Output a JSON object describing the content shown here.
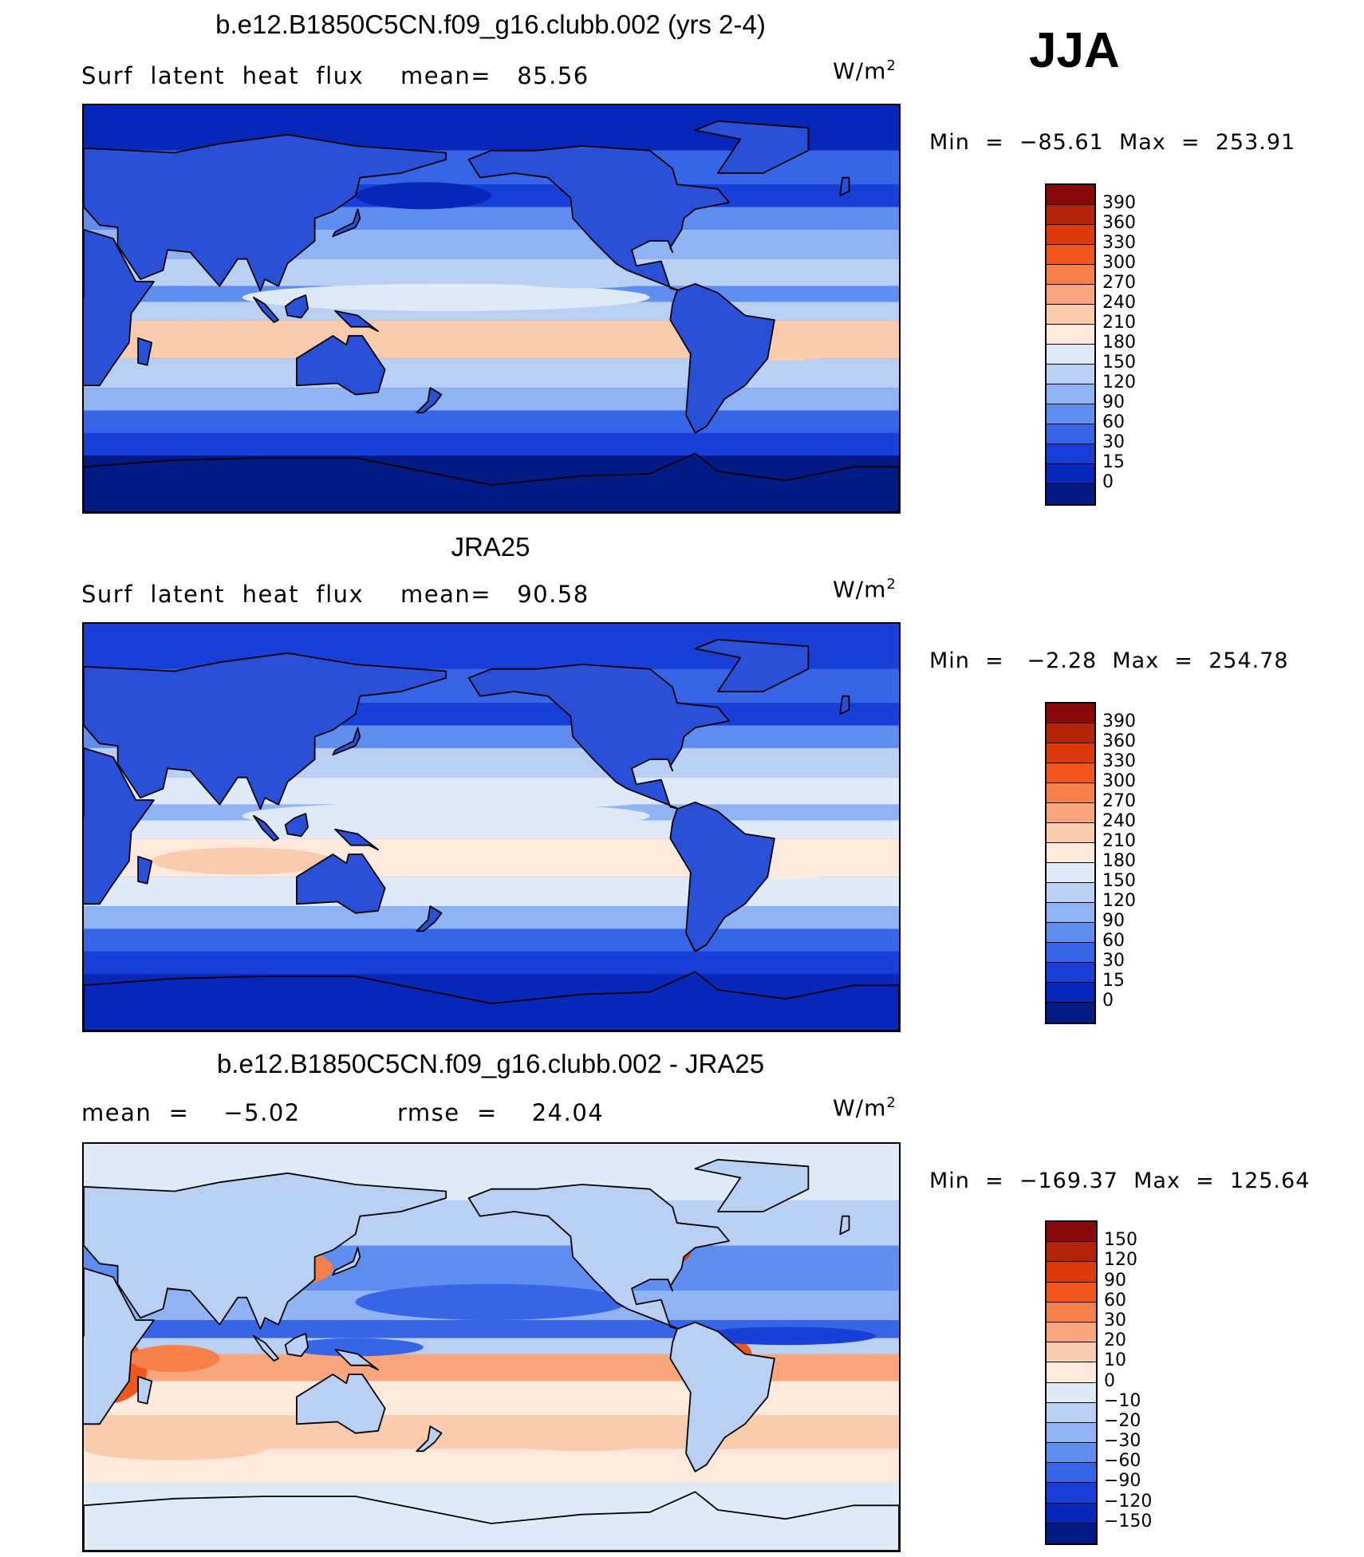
{
  "season": "JJA",
  "panels": [
    {
      "title": "b.e12.B1850C5CN.f09_g16.clubb.002 (yrs 2-4)",
      "left_label": "Surf  latent  heat  flux",
      "stat_label": "mean=   85.56",
      "units": "W/m",
      "units_sup": "2",
      "minmax": "Min  =  −85.61  Max  =  253.91",
      "kind": "model",
      "colorbar_labels": [
        "390",
        "360",
        "330",
        "300",
        "270",
        "240",
        "210",
        "180",
        "150",
        "120",
        "90",
        "60",
        "30",
        "15",
        "0"
      ],
      "colorbar_colors": [
        "#8a0a0a",
        "#b52308",
        "#dd3a0a",
        "#f2561a",
        "#f7804a",
        "#f9a67d",
        "#fbcbae",
        "#fdeadd",
        "#dfeaf7",
        "#b9d0f4",
        "#8fb3f3",
        "#5f8ef0",
        "#3765e8",
        "#1840d8",
        "#0727b8",
        "#011a86"
      ]
    },
    {
      "title": "JRA25",
      "left_label": "Surf  latent  heat  flux",
      "stat_label": "mean=   90.58",
      "units": "W/m",
      "units_sup": "2",
      "minmax": "Min  =   −2.28  Max  =  254.78",
      "kind": "obs",
      "colorbar_labels": [
        "390",
        "360",
        "330",
        "300",
        "270",
        "240",
        "210",
        "180",
        "150",
        "120",
        "90",
        "60",
        "30",
        "15",
        "0"
      ],
      "colorbar_colors": [
        "#8a0a0a",
        "#b52308",
        "#dd3a0a",
        "#f2561a",
        "#f7804a",
        "#f9a67d",
        "#fbcbae",
        "#fdeadd",
        "#dfeaf7",
        "#b9d0f4",
        "#8fb3f3",
        "#5f8ef0",
        "#3765e8",
        "#1840d8",
        "#0727b8",
        "#011a86"
      ]
    },
    {
      "title": "b.e12.B1850C5CN.f09_g16.clubb.002 - JRA25",
      "left_label": "mean  =    −5.02",
      "stat_label": "rmse  =    24.04",
      "units": "W/m",
      "units_sup": "2",
      "minmax": "Min  =  −169.37  Max  =  125.64",
      "kind": "diff",
      "colorbar_labels": [
        "150",
        "120",
        "90",
        "60",
        "30",
        "20",
        "10",
        "0",
        "−10",
        "−20",
        "−30",
        "−60",
        "−90",
        "−120",
        "−150"
      ],
      "colorbar_colors": [
        "#8a0a0a",
        "#b52308",
        "#dd3a0a",
        "#f2561a",
        "#f7804a",
        "#f9a67d",
        "#fbcbae",
        "#fdeadd",
        "#dfeaf7",
        "#b9d0f4",
        "#8fb3f3",
        "#5f8ef0",
        "#3765e8",
        "#1840d8",
        "#0727b8",
        "#011a86"
      ]
    }
  ]
}
